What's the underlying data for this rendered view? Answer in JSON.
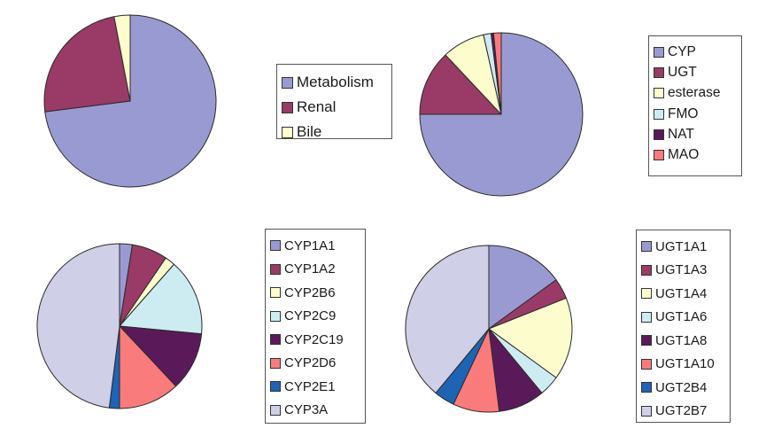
{
  "chart_data": [
    {
      "id": "elimination",
      "type": "pie",
      "title": "",
      "slices": [
        {
          "label": "Metabolism",
          "value": 73,
          "color": "#9a9ad2"
        },
        {
          "label": "Renal",
          "value": 24,
          "color": "#9a3a66"
        },
        {
          "label": "Bile",
          "value": 3,
          "color": "#fcfccc"
        }
      ],
      "legend_placement": "right"
    },
    {
      "id": "enzyme-families",
      "type": "pie",
      "title": "",
      "slices": [
        {
          "label": "CYP",
          "value": 75,
          "color": "#9a9ad2"
        },
        {
          "label": "UGT",
          "value": 13,
          "color": "#9a3a66"
        },
        {
          "label": "esterase",
          "value": 8.5,
          "color": "#fcfccc"
        },
        {
          "label": "FMO",
          "value": 1.5,
          "color": "#cdecf2"
        },
        {
          "label": "NAT",
          "value": 0.5,
          "color": "#5a1a5a"
        },
        {
          "label": "MAO",
          "value": 1.5,
          "color": "#f97b7b"
        }
      ],
      "legend_placement": "right"
    },
    {
      "id": "cyp-isoforms",
      "type": "pie",
      "title": "",
      "slices": [
        {
          "label": "CYP1A1",
          "value": 2.5,
          "color": "#9a9ad2"
        },
        {
          "label": "CYP1A2",
          "value": 7,
          "color": "#9a3a66"
        },
        {
          "label": "CYP2B6",
          "value": 2,
          "color": "#fcfccc"
        },
        {
          "label": "CYP2C9",
          "value": 15,
          "color": "#cdecf2"
        },
        {
          "label": "CYP2C19",
          "value": 11.5,
          "color": "#5a1a5a"
        },
        {
          "label": "CYP2D6",
          "value": 12,
          "color": "#f97b7b"
        },
        {
          "label": "CYP2E1",
          "value": 2,
          "color": "#1e64b4"
        },
        {
          "label": "CYP3A",
          "value": 48,
          "color": "#cfcfe7"
        }
      ],
      "legend_placement": "right"
    },
    {
      "id": "ugt-isoforms",
      "type": "pie",
      "title": "",
      "slices": [
        {
          "label": "UGT1A1",
          "value": 15,
          "color": "#9a9ad2"
        },
        {
          "label": "UGT1A3",
          "value": 4,
          "color": "#9a3a66"
        },
        {
          "label": "UGT1A4",
          "value": 16,
          "color": "#fcfccc"
        },
        {
          "label": "UGT1A6",
          "value": 4,
          "color": "#cdecf2"
        },
        {
          "label": "UGT1A8",
          "value": 9,
          "color": "#5a1a5a"
        },
        {
          "label": "UGT1A10",
          "value": 9,
          "color": "#f97b7b"
        },
        {
          "label": "UGT2B4",
          "value": 4,
          "color": "#1e64b4"
        },
        {
          "label": "UGT2B7",
          "value": 39,
          "color": "#cfcfe7"
        }
      ],
      "legend_placement": "right"
    }
  ]
}
